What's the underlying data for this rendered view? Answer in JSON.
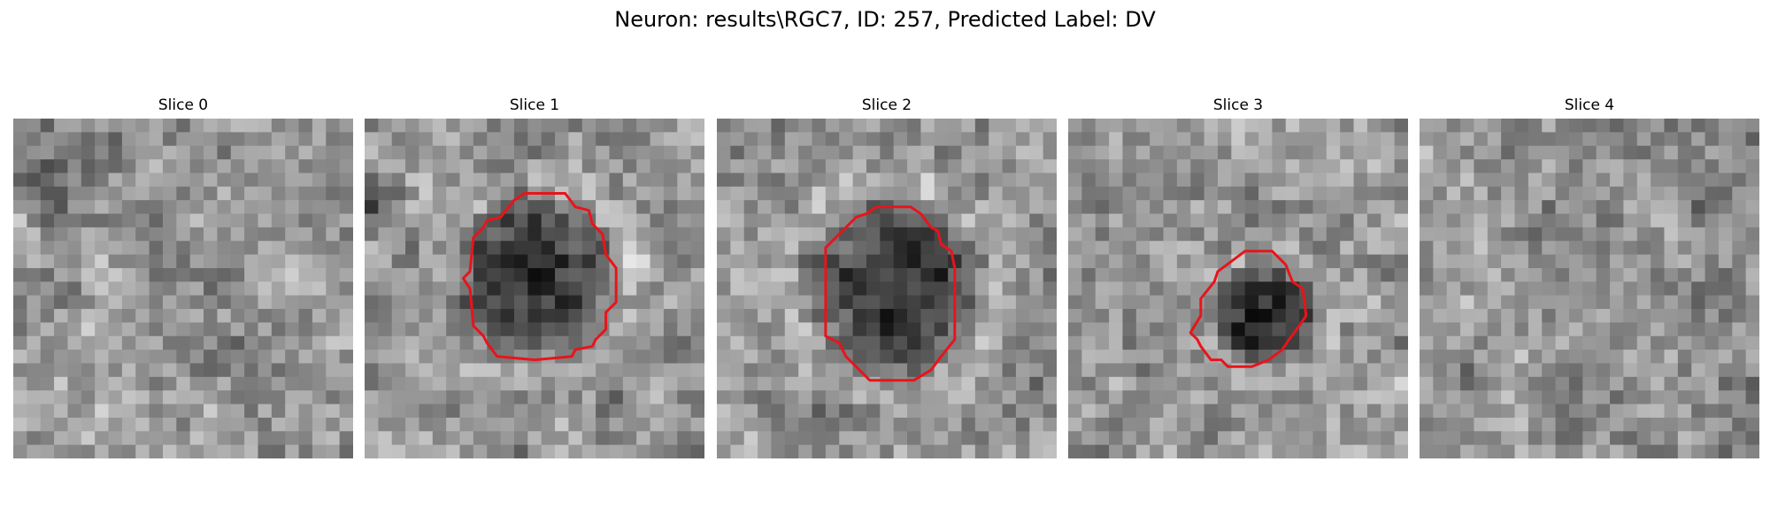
{
  "figure": {
    "title": "Neuron: results\\RGC7, ID: 257, Predicted Label: DV"
  },
  "colors": {
    "contour": "#e8141b",
    "background": "#ffffff"
  },
  "slices": [
    {
      "title": "Slice 0",
      "has_contour": false
    },
    {
      "title": "Slice 1",
      "has_contour": true
    },
    {
      "title": "Slice 2",
      "has_contour": true
    },
    {
      "title": "Slice 3",
      "has_contour": true
    },
    {
      "title": "Slice 4",
      "has_contour": false
    }
  ]
}
